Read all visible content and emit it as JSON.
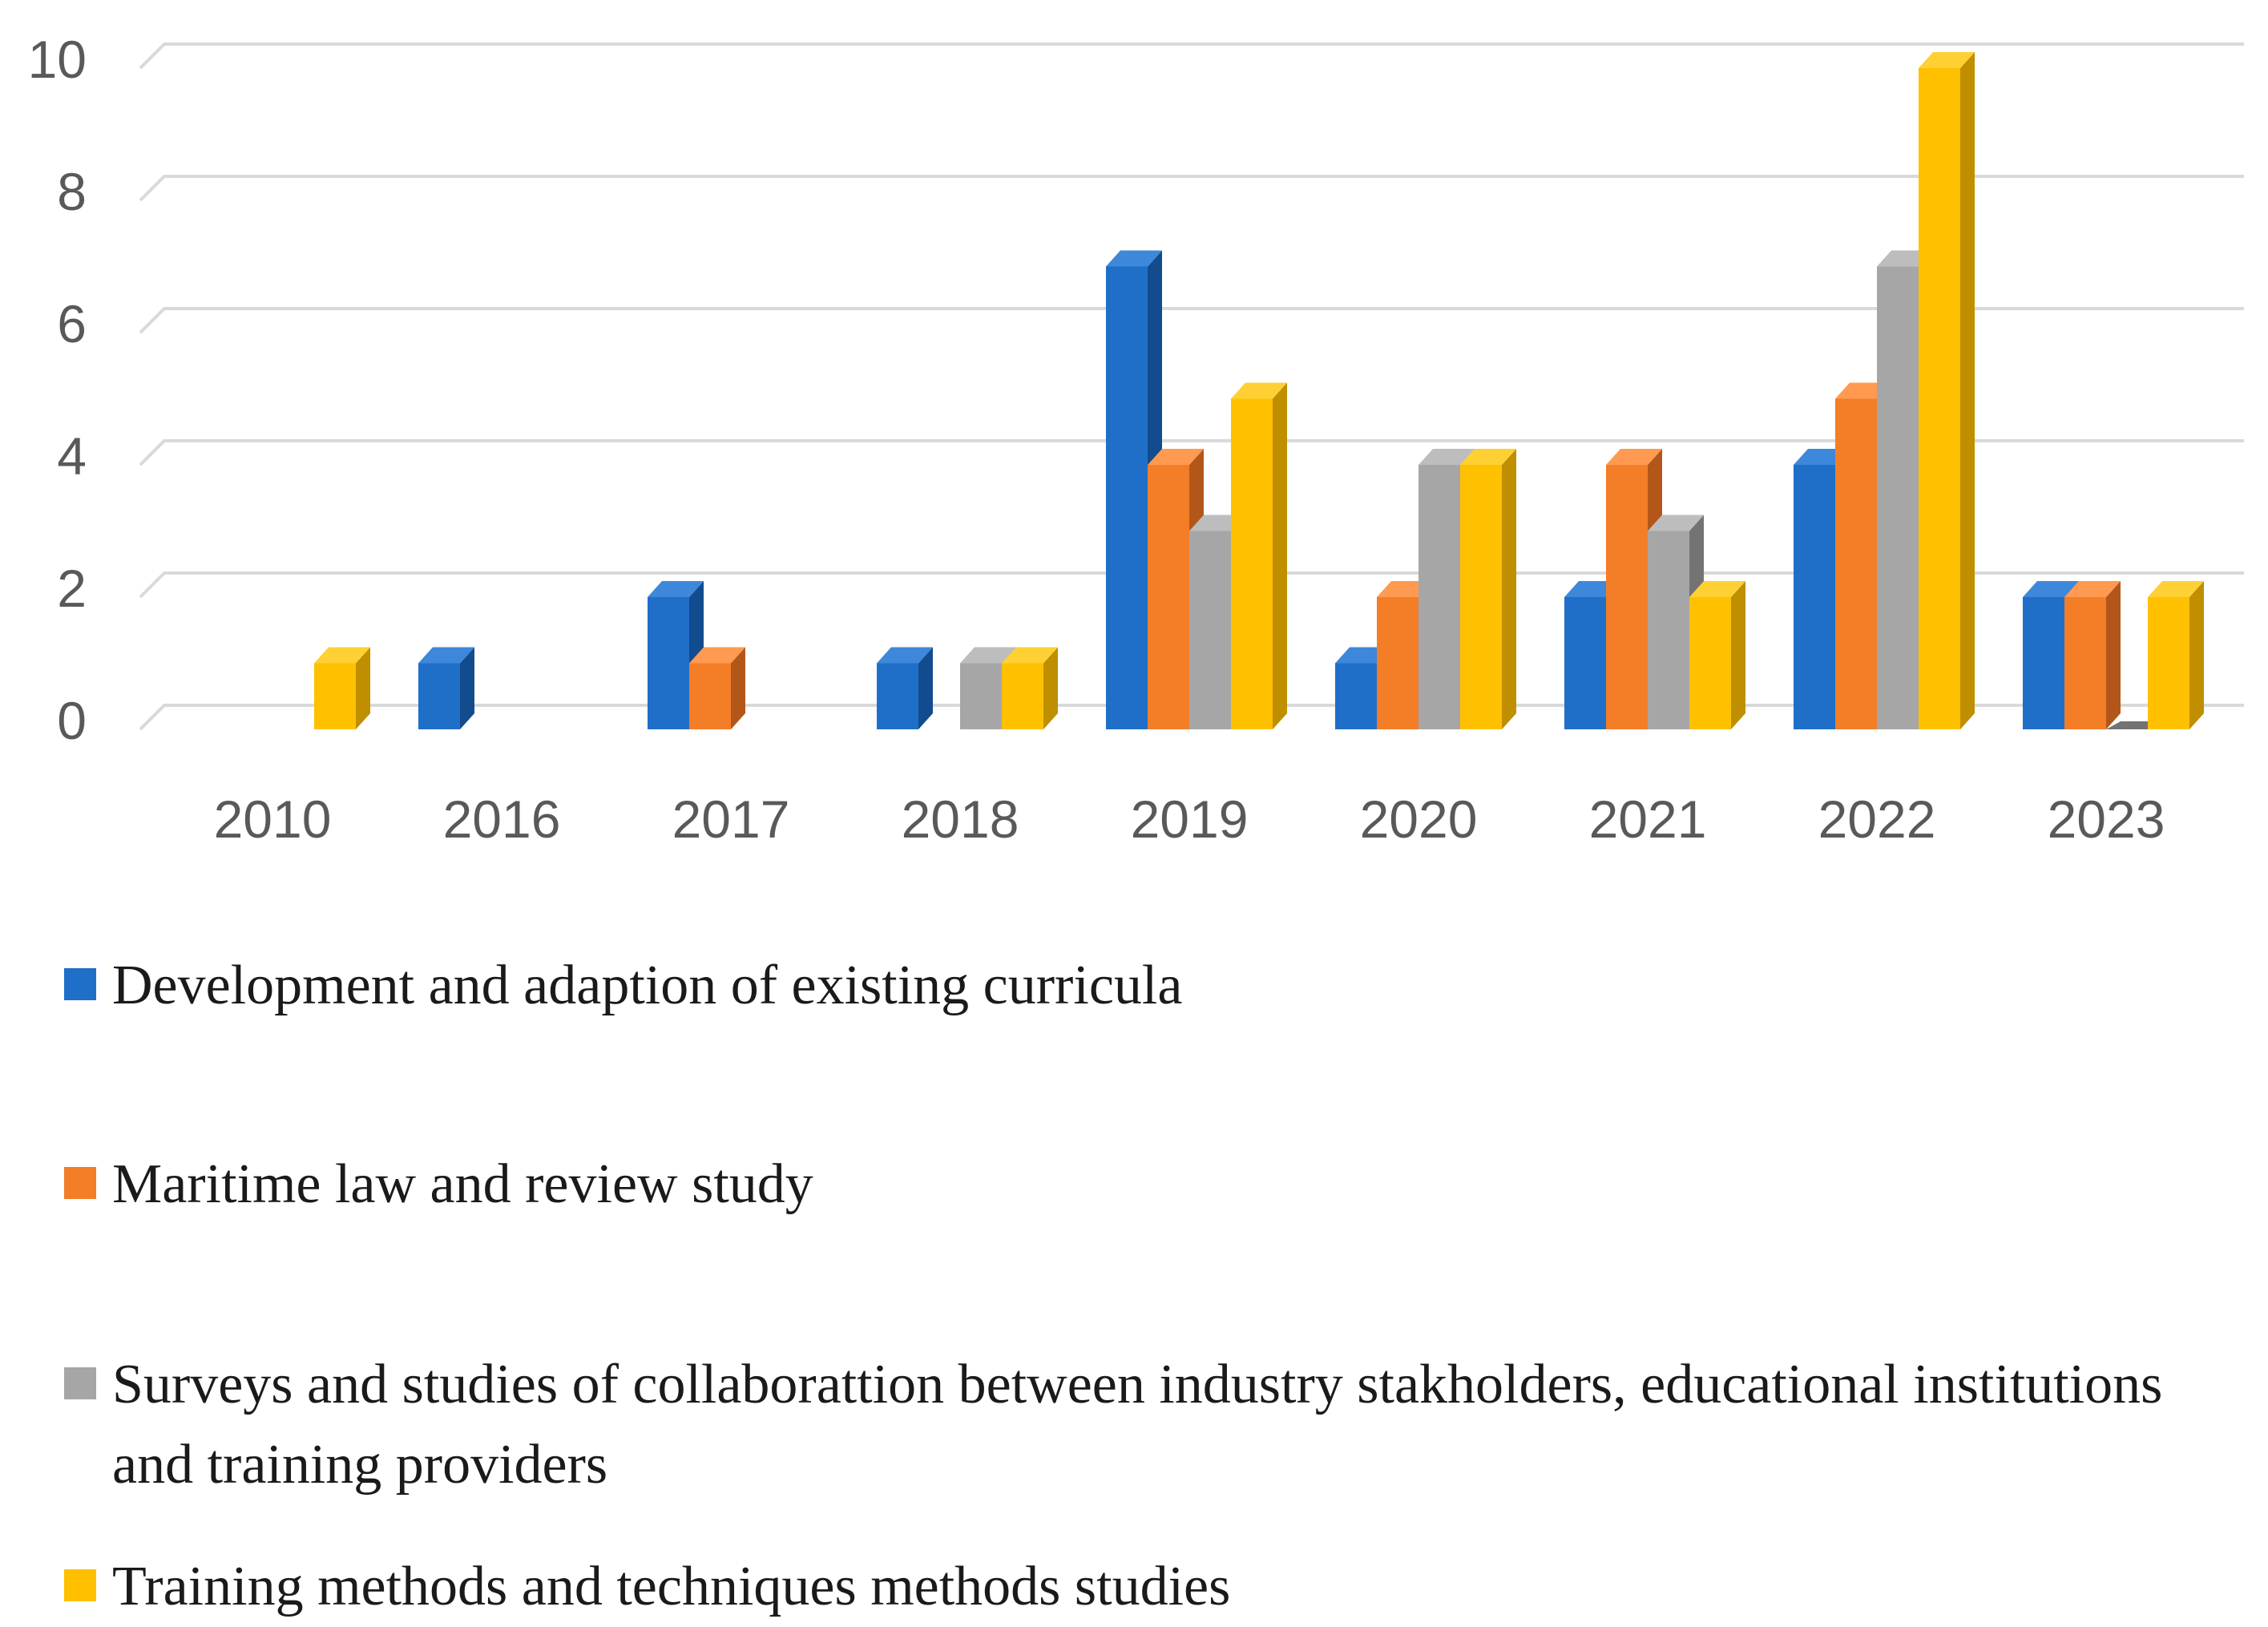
{
  "colors": {
    "series": [
      "#1F6FC9",
      "#F47D28",
      "#A6A6A6",
      "#FFC000"
    ],
    "series_top": [
      "#3D88DA",
      "#FF9A50",
      "#BDBDBD",
      "#FFD034"
    ],
    "series_side": [
      "#124C8E",
      "#B3561A",
      "#737373",
      "#BF8F00"
    ],
    "grid": "#D9D9D9",
    "tick_text": "#595959"
  },
  "chart_data": {
    "type": "bar",
    "style": "3d-clustered-column",
    "categories": [
      "2010",
      "2016",
      "2017",
      "2018",
      "2019",
      "2020",
      "2021",
      "2022",
      "2023"
    ],
    "series": [
      {
        "name": "Development and adaption of existing curricula",
        "values": [
          0,
          1,
          2,
          1,
          7,
          1,
          2,
          4,
          2
        ]
      },
      {
        "name": "Maritime law and review study",
        "values": [
          0,
          0,
          1,
          0,
          4,
          2,
          4,
          5,
          2
        ]
      },
      {
        "name": "Surveys and studies of collaborattion between industry stakholders, educational institutions and training providers",
        "values": [
          0,
          0,
          0,
          1,
          3,
          4,
          3,
          7,
          0
        ]
      },
      {
        "name": "Training methods and techniques methods studies",
        "values": [
          1,
          0,
          0,
          1,
          5,
          4,
          2,
          10,
          2
        ]
      }
    ],
    "y_ticks": [
      "0",
      "2",
      "4",
      "6",
      "8",
      "10"
    ],
    "ylim": [
      0,
      10
    ],
    "grid": true,
    "legend_position": "bottom",
    "title": "",
    "xlabel": "",
    "ylabel": ""
  },
  "legend": {
    "items": [
      "Development and adaption of existing curricula",
      "Maritime law and review study",
      "Surveys and studies of collaborattion between industry stakholders, educational institutions and training providers",
      "Training methods and techniques methods studies"
    ]
  }
}
